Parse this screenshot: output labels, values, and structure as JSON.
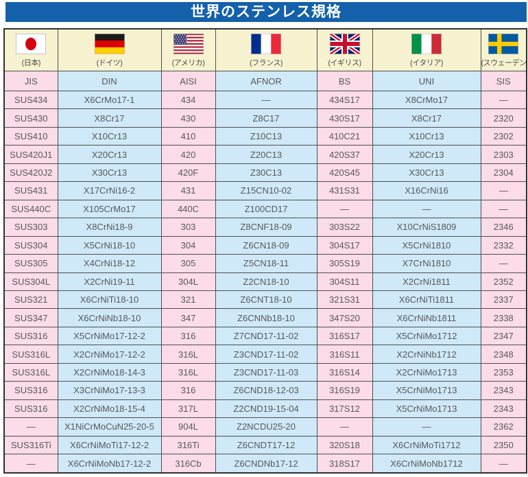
{
  "title": "世界のステンレス規格",
  "colors": {
    "title_bg": "#1460ab",
    "title_text": "#ffffff",
    "header_bg": "#f7f3d0",
    "pink_column": "#fbdce8",
    "blue_column": "#cfe9f8",
    "border": "#4f4f4f",
    "cell_text": "#57585a"
  },
  "header": {
    "countries": [
      {
        "label": "(日本)",
        "flag": "japan"
      },
      {
        "label": "(ドイツ)",
        "flag": "germany"
      },
      {
        "label": "(アメリカ)",
        "flag": "usa"
      },
      {
        "label": "(フランス)",
        "flag": "france"
      },
      {
        "label": "(イギリス)",
        "flag": "uk"
      },
      {
        "label": "(イタリア)",
        "flag": "italy"
      },
      {
        "label": "(スウェーデン)",
        "flag": "sweden"
      }
    ],
    "codes": [
      "JIS",
      "DIN",
      "AISI",
      "AFNOR",
      "BS",
      "UNI",
      "SIS"
    ]
  },
  "rows": [
    [
      "SUS434",
      "X6CrMo17-1",
      "434",
      "—",
      "434S17",
      "X8CrMo17",
      "—"
    ],
    [
      "SUS430",
      "X8Cr17",
      "430",
      "Z8C17",
      "430S17",
      "X8Cr17",
      "2320"
    ],
    [
      "SUS410",
      "X10Cr13",
      "410",
      "Z10C13",
      "410C21",
      "X10Cr13",
      "2302"
    ],
    [
      "SUS420J1",
      "X20Cr13",
      "420",
      "Z20C13",
      "420S37",
      "X20Cr13",
      "2303"
    ],
    [
      "SUS420J2",
      "X30Cr13",
      "420F",
      "Z30C13",
      "420S45",
      "X30Cr13",
      "2304"
    ],
    [
      "SUS431",
      "X17CrNi16-2",
      "431",
      "Z15CN10-02",
      "431S31",
      "X16CrNi16",
      "—"
    ],
    [
      "SUS440C",
      "X105CrMo17",
      "440C",
      "Z100CD17",
      "—",
      "—",
      "—"
    ],
    [
      "SUS303",
      "X8CrNi18-9",
      "303",
      "Z8CNF18-09",
      "303S22",
      "X10CrNiS1809",
      "2346"
    ],
    [
      "SUS304",
      "X5CrNi18-10",
      "304",
      "Z6CN18-09",
      "304S17",
      "X5CrNi1810",
      "2332"
    ],
    [
      "SUS305",
      "X4CrNi18-12",
      "305",
      "Z5CN18-11",
      "305S19",
      "X7CrNi1810",
      "—"
    ],
    [
      "SUS304L",
      "X2CrNi19-11",
      "304L",
      "Z2CN18-10",
      "304S11",
      "X2CrNi1811",
      "2352"
    ],
    [
      "SUS321",
      "X6CrNiTi18-10",
      "321",
      "Z6CNT18-10",
      "321S31",
      "X6CrNiTi1811",
      "2337"
    ],
    [
      "SUS347",
      "X6CrNiNb18-10",
      "347",
      "Z6CNNb18-10",
      "347S20",
      "X6CrNiNb1811",
      "2338"
    ],
    [
      "SUS316",
      "X5CrNiMo17-12-2",
      "316",
      "Z7CND17-11-02",
      "316S17",
      "X5CrNiMo1712",
      "2347"
    ],
    [
      "SUS316L",
      "X2CrNiMo17-12-2",
      "316L",
      "Z3CND17-11-02",
      "316S11",
      "X2CrNiNb1712",
      "2348"
    ],
    [
      "SUS316L",
      "X2CrNiMo18-14-3",
      "316L",
      "Z3CND17-11-03",
      "316S14",
      "X2CrNiMo1713",
      "2353"
    ],
    [
      "SUS316",
      "X3CrNiMo17-13-3",
      "316",
      "Z6CND18-12-03",
      "316S19",
      "X5CrNiMo1713",
      "2343"
    ],
    [
      "SUS316",
      "X2CrNiMo18-15-4",
      "317L",
      "Z2CND19-15-04",
      "317S12",
      "X5CrNiMo1713",
      "2343"
    ],
    [
      "—",
      "X1NiCrMoCuN25-20-5",
      "904L",
      "Z2NCDU25-20",
      "—",
      "—",
      "2362"
    ],
    [
      "SUS316Ti",
      "X6CrNiMoTi17-12-2",
      "316Ti",
      "Z6CNDT17-12",
      "320S18",
      "X6CrNiMoTi1712",
      "2350"
    ],
    [
      "—",
      "X6CrNiMoNb17-12-2",
      "316Cb",
      "Z6CNDNb17-12",
      "318S17",
      "X6CrNiMoNb1712",
      "—"
    ]
  ]
}
